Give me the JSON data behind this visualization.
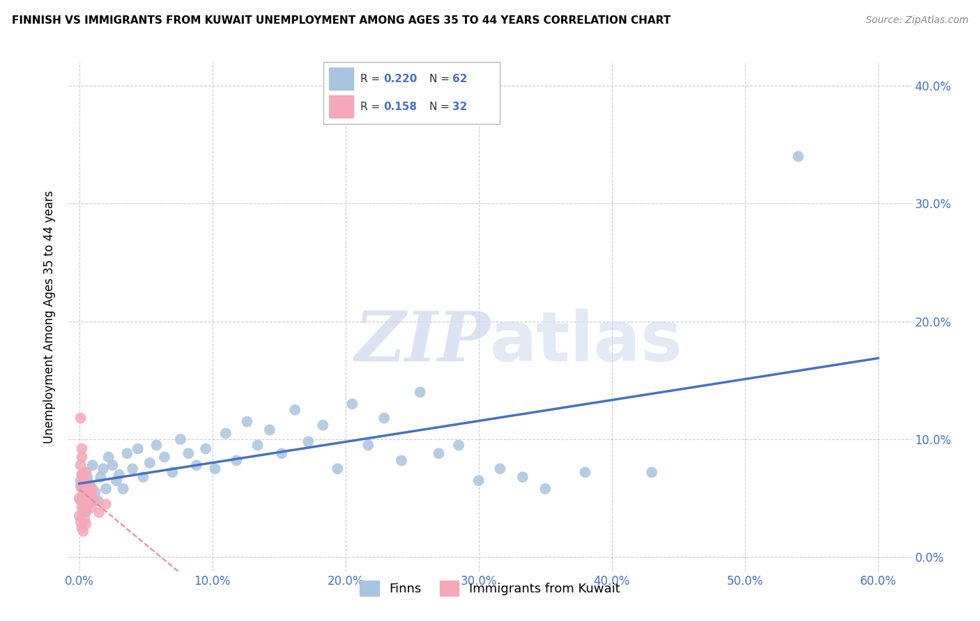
{
  "title": "FINNISH VS IMMIGRANTS FROM KUWAIT UNEMPLOYMENT AMONG AGES 35 TO 44 YEARS CORRELATION CHART",
  "source": "Source: ZipAtlas.com",
  "ylabel": "Unemployment Among Ages 35 to 44 years",
  "R_finns": 0.22,
  "N_finns": 62,
  "R_kuwait": 0.158,
  "N_kuwait": 32,
  "finns_color": "#a8c4e0",
  "kuwait_color": "#f4a8b8",
  "finns_line_color": "#4472c4",
  "kuwait_line_color": "#e8829a",
  "watermark_color": "#ccd8ee",
  "finns_x": [
    0.001,
    0.002,
    0.002,
    0.003,
    0.003,
    0.004,
    0.004,
    0.005,
    0.005,
    0.006,
    0.006,
    0.007,
    0.008,
    0.009,
    0.01,
    0.012,
    0.014,
    0.016,
    0.018,
    0.02,
    0.022,
    0.025,
    0.028,
    0.03,
    0.033,
    0.036,
    0.04,
    0.044,
    0.048,
    0.053,
    0.058,
    0.064,
    0.07,
    0.076,
    0.082,
    0.088,
    0.095,
    0.102,
    0.11,
    0.118,
    0.126,
    0.134,
    0.143,
    0.152,
    0.162,
    0.172,
    0.183,
    0.194,
    0.205,
    0.217,
    0.229,
    0.242,
    0.256,
    0.27,
    0.285,
    0.3,
    0.316,
    0.333,
    0.35,
    0.38,
    0.43,
    0.54
  ],
  "finns_y": [
    0.06,
    0.05,
    0.07,
    0.04,
    0.065,
    0.055,
    0.048,
    0.072,
    0.038,
    0.058,
    0.068,
    0.045,
    0.062,
    0.052,
    0.078,
    0.055,
    0.048,
    0.068,
    0.075,
    0.058,
    0.085,
    0.078,
    0.065,
    0.07,
    0.058,
    0.088,
    0.075,
    0.092,
    0.068,
    0.08,
    0.095,
    0.085,
    0.072,
    0.1,
    0.088,
    0.078,
    0.092,
    0.075,
    0.105,
    0.082,
    0.115,
    0.095,
    0.108,
    0.088,
    0.125,
    0.098,
    0.112,
    0.075,
    0.13,
    0.095,
    0.118,
    0.082,
    0.14,
    0.088,
    0.095,
    0.065,
    0.075,
    0.068,
    0.058,
    0.072,
    0.072,
    0.34
  ],
  "kuwait_x": [
    0.0,
    0.0,
    0.001,
    0.001,
    0.001,
    0.001,
    0.002,
    0.002,
    0.002,
    0.002,
    0.002,
    0.003,
    0.003,
    0.003,
    0.003,
    0.004,
    0.004,
    0.004,
    0.005,
    0.005,
    0.005,
    0.006,
    0.006,
    0.007,
    0.008,
    0.009,
    0.01,
    0.012,
    0.015,
    0.02,
    0.001,
    0.002
  ],
  "kuwait_y": [
    0.05,
    0.035,
    0.065,
    0.048,
    0.078,
    0.03,
    0.058,
    0.042,
    0.07,
    0.025,
    0.085,
    0.055,
    0.038,
    0.068,
    0.022,
    0.06,
    0.045,
    0.032,
    0.072,
    0.04,
    0.028,
    0.052,
    0.062,
    0.048,
    0.055,
    0.042,
    0.058,
    0.048,
    0.038,
    0.045,
    0.118,
    0.092
  ],
  "xlim": [
    -0.008,
    0.625
  ],
  "ylim": [
    -0.012,
    0.42
  ],
  "xtick_vals": [
    0.0,
    0.1,
    0.2,
    0.3,
    0.4,
    0.5,
    0.6
  ],
  "ytick_vals": [
    0.0,
    0.1,
    0.2,
    0.3,
    0.4
  ]
}
